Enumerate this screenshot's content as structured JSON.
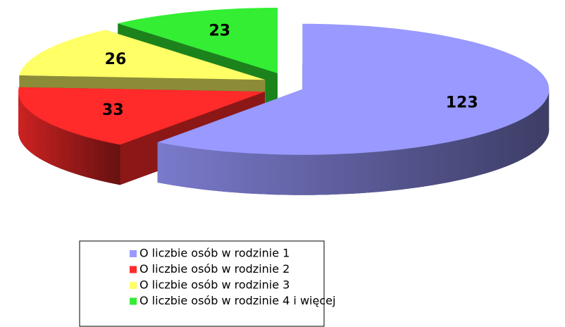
{
  "chart_data": {
    "type": "pie",
    "categories": [
      "O liczbie osób w rodzinie 1",
      "O liczbie osób w rodzinie 2",
      "O liczbie osób w rodzinie 3",
      "O liczbie osób w rodzinie 4 i więcej"
    ],
    "values": [
      123,
      33,
      26,
      23
    ],
    "colors": [
      "#9999ff",
      "#ff2a2a",
      "#ffff66",
      "#33ee33"
    ],
    "legend": "bottom"
  }
}
